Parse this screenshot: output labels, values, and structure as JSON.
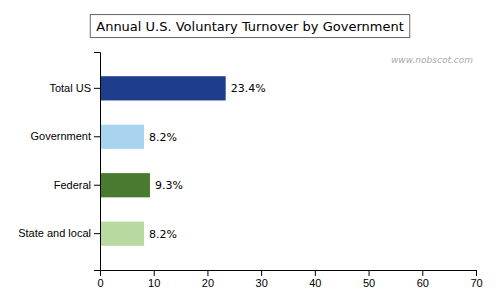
{
  "chart_data": {
    "type": "bar",
    "orientation": "horizontal",
    "title": "Annual U.S. Voluntary Turnover by Government",
    "categories": [
      "State and local",
      "Federal",
      "Government",
      "Total US"
    ],
    "values": [
      8.2,
      9.3,
      8.2,
      23.4
    ],
    "value_labels": [
      "8.2%",
      "9.3%",
      "8.2%",
      "23.4%"
    ],
    "data_labels": true,
    "colors": [
      "#b8d9a0",
      "#4a7a30",
      "#a8d4f0",
      "#1e3d8c"
    ],
    "xlim": [
      0,
      70
    ],
    "xticks": [
      0,
      10,
      20,
      30,
      40,
      50,
      60,
      70
    ],
    "annotations": [
      "www.nobscot.com"
    ],
    "grid": false
  }
}
